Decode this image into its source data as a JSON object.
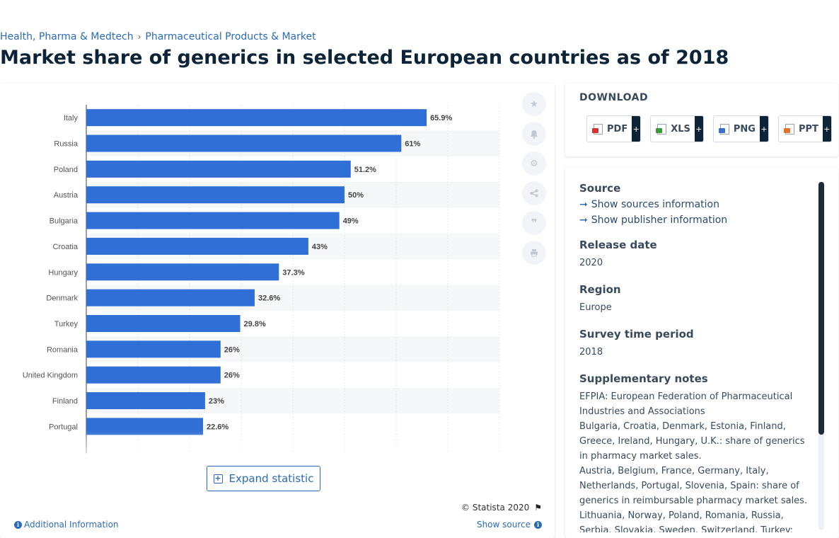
{
  "breadcrumb": {
    "items": [
      "Health, Pharma & Medtech",
      "Pharmaceutical Products & Market"
    ],
    "separator": "›"
  },
  "title": "Market share of generics in selected European countries as of 2018",
  "chart_data": {
    "type": "bar",
    "orientation": "horizontal",
    "categories": [
      "Italy",
      "Russia",
      "Poland",
      "Austria",
      "Bulgaria",
      "Croatia",
      "Hungary",
      "Denmark",
      "Turkey",
      "Romania",
      "United Kingdom",
      "Finland",
      "Portugal"
    ],
    "values": [
      65.9,
      61,
      51.2,
      50,
      49,
      43,
      37.3,
      32.6,
      29.8,
      26,
      26,
      23,
      22.6
    ],
    "value_labels": [
      "65.9%",
      "61%",
      "51.2%",
      "50%",
      "49%",
      "43%",
      "37.3%",
      "32.6%",
      "29.8%",
      "26%",
      "26%",
      "23%",
      "22.6%"
    ],
    "xlim": [
      0,
      80
    ],
    "grid": true,
    "bar_color": "#2f6fd6",
    "truncated": true
  },
  "tools": {
    "icons": [
      "star-icon",
      "bell-icon",
      "gear-icon",
      "share-icon",
      "quote-icon",
      "print-icon"
    ]
  },
  "expand_label": "Expand statistic",
  "copyright": "© Statista 2020",
  "additional_info": "Additional Information",
  "show_source": "Show source",
  "download": {
    "title": "DOWNLOAD",
    "buttons": [
      {
        "label": "PDF",
        "color": "#d9312b"
      },
      {
        "label": "XLS",
        "color": "#3a9a3a"
      },
      {
        "label": "PNG",
        "color": "#3b6fc9"
      },
      {
        "label": "PPT",
        "color": "#e0742a"
      }
    ],
    "plus": "+"
  },
  "info": {
    "source_heading": "Source",
    "source_links": [
      "Show sources information",
      "Show publisher information"
    ],
    "release_heading": "Release date",
    "release_value": "2020",
    "region_heading": "Region",
    "region_value": "Europe",
    "survey_heading": "Survey time period",
    "survey_value": "2018",
    "notes_heading": "Supplementary notes",
    "notes": [
      "EFPIA: European Federation of Pharmaceutical Industries and Associations",
      "Bulgaria, Croatia, Denmark, Estonia, Finland, Greece, Ireland, Hungary, U.K.: share of generics in pharmacy market sales.",
      "Austria, Belgium, France, Germany, Italy, Netherlands, Portugal, Slovenia, Spain: share of generics in reimbursable pharmacy market sales.",
      "Lithuania, Norway, Poland, Romania, Russia, Serbia, Slovakia, Sweden, Switzerland, Turkey: share of generics in total market sales."
    ]
  }
}
